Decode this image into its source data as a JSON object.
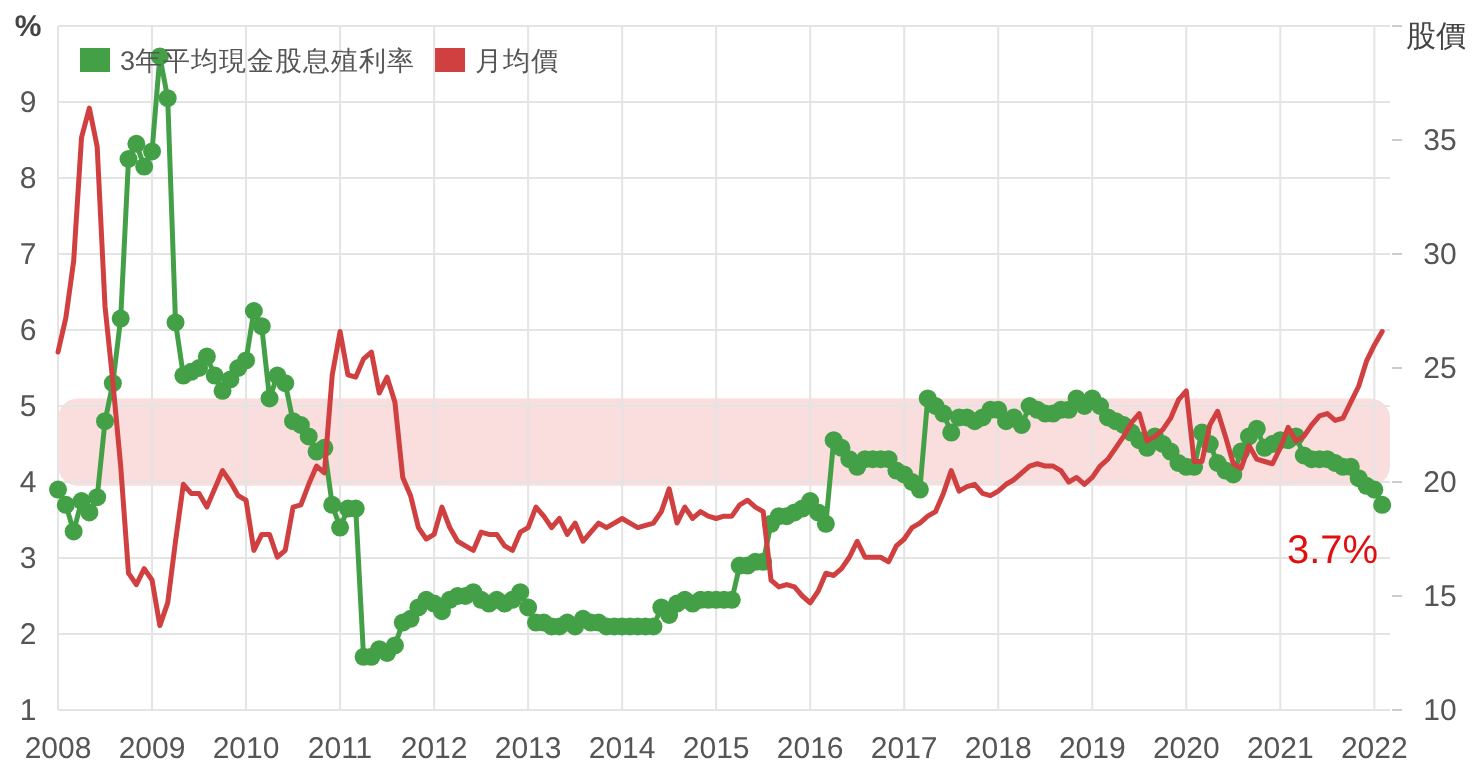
{
  "chart_data": {
    "type": "line",
    "ylabel": "%",
    "y2label": "股價",
    "legend": "top left",
    "grid": true,
    "xlim": [
      "2008-01",
      "2022-03"
    ],
    "xticks": [
      "2008",
      "2009",
      "2010",
      "2011",
      "2012",
      "2013",
      "2014",
      "2015",
      "2016",
      "2017",
      "2018",
      "2019",
      "2020",
      "2021",
      "2022"
    ],
    "ylim": [
      1,
      10
    ],
    "yticks": [
      1,
      2,
      3,
      4,
      5,
      6,
      7,
      8,
      9,
      {
        "value": 10,
        "label": null
      }
    ],
    "y2lim": [
      10,
      40
    ],
    "y2ticks": [
      10,
      15,
      20,
      25,
      30,
      35,
      {
        "value": 40,
        "label": null
      }
    ],
    "series": [
      {
        "name": "3年平均現金股息殖利率",
        "color": "#43a047",
        "marker": "circle",
        "axis": "y",
        "values": [
          3.9,
          3.7,
          3.35,
          3.75,
          3.6,
          3.8,
          4.8,
          5.3,
          6.15,
          8.25,
          8.45,
          8.15,
          8.35,
          9.6,
          9.05,
          6.1,
          5.4,
          5.45,
          5.5,
          5.65,
          5.4,
          5.2,
          5.35,
          5.5,
          5.6,
          6.25,
          6.05,
          5.1,
          5.4,
          5.3,
          4.8,
          4.75,
          4.6,
          4.4,
          4.45,
          3.7,
          3.4,
          3.65,
          3.65,
          1.7,
          1.7,
          1.8,
          1.75,
          1.85,
          2.15,
          2.2,
          2.35,
          2.45,
          2.4,
          2.3,
          2.45,
          2.5,
          2.5,
          2.55,
          2.45,
          2.4,
          2.45,
          2.4,
          2.45,
          2.55,
          2.35,
          2.15,
          2.15,
          2.1,
          2.1,
          2.15,
          2.1,
          2.2,
          2.15,
          2.15,
          2.1,
          2.1,
          2.1,
          2.1,
          2.1,
          2.1,
          2.1,
          2.35,
          2.25,
          2.4,
          2.45,
          2.4,
          2.45,
          2.45,
          2.45,
          2.45,
          2.45,
          2.9,
          2.9,
          2.95,
          2.95,
          3.45,
          3.55,
          3.55,
          3.6,
          3.65,
          3.75,
          3.6,
          3.45,
          4.55,
          4.45,
          4.3,
          4.2,
          4.3,
          4.3,
          4.3,
          4.3,
          4.15,
          4.1,
          4.0,
          3.9,
          5.1,
          5.0,
          4.9,
          4.65,
          4.85,
          4.85,
          4.8,
          4.85,
          4.95,
          4.95,
          4.8,
          4.85,
          4.75,
          5.0,
          4.95,
          4.9,
          4.9,
          4.95,
          4.95,
          5.1,
          5.0,
          5.1,
          5.0,
          4.85,
          4.8,
          4.75,
          4.65,
          4.55,
          4.45,
          4.6,
          4.5,
          4.4,
          4.25,
          4.2,
          4.2,
          4.65,
          4.5,
          4.25,
          4.15,
          4.1,
          4.4,
          4.6,
          4.7,
          4.45,
          4.5,
          4.55,
          4.55,
          4.6,
          4.35,
          4.3,
          4.3,
          4.3,
          4.25,
          4.2,
          4.2,
          4.05,
          3.95,
          3.9,
          3.7
        ]
      },
      {
        "name": "月均價",
        "color": "#d04040",
        "marker": "none",
        "axis": "y2",
        "values": [
          25.7,
          27.2,
          29.7,
          35.1,
          36.4,
          34.7,
          27.7,
          24.4,
          20.7,
          16.0,
          15.5,
          16.2,
          15.7,
          13.7,
          14.7,
          17.4,
          19.9,
          19.5,
          19.5,
          18.9,
          19.7,
          20.5,
          20.0,
          19.4,
          19.2,
          17.0,
          17.7,
          17.7,
          16.7,
          17.0,
          18.9,
          19.0,
          19.9,
          20.7,
          20.4,
          24.7,
          26.6,
          24.7,
          24.6,
          25.4,
          25.7,
          23.9,
          24.6,
          23.5,
          20.2,
          19.4,
          18.0,
          17.5,
          17.7,
          18.9,
          18.0,
          17.4,
          17.2,
          17.0,
          17.8,
          17.7,
          17.7,
          17.2,
          17.0,
          17.8,
          18.0,
          18.9,
          18.5,
          18.0,
          18.4,
          17.7,
          18.2,
          17.4,
          17.8,
          18.2,
          18.0,
          18.2,
          18.4,
          18.2,
          18.0,
          18.1,
          18.2,
          18.7,
          19.7,
          18.2,
          18.9,
          18.4,
          18.7,
          18.5,
          18.4,
          18.5,
          18.5,
          19.0,
          19.2,
          18.9,
          18.7,
          15.7,
          15.4,
          15.5,
          15.4,
          15.0,
          14.7,
          15.2,
          16.0,
          15.9,
          16.2,
          16.7,
          17.4,
          16.7,
          16.7,
          16.7,
          16.5,
          17.2,
          17.5,
          18.0,
          18.2,
          18.5,
          18.7,
          19.5,
          20.5,
          19.6,
          19.8,
          19.9,
          19.5,
          19.4,
          19.6,
          19.9,
          20.1,
          20.4,
          20.7,
          20.8,
          20.7,
          20.7,
          20.5,
          20.0,
          20.2,
          19.9,
          20.2,
          20.7,
          21.0,
          21.5,
          22.0,
          22.6,
          23.0,
          21.8,
          22.0,
          22.3,
          22.8,
          23.6,
          24.0,
          20.9,
          20.9,
          22.5,
          23.1,
          22.0,
          20.8,
          20.6,
          21.6,
          21.0,
          20.9,
          20.8,
          21.5,
          22.4,
          21.8,
          22.0,
          22.5,
          22.9,
          23.0,
          22.7,
          22.8,
          23.5,
          24.2,
          25.3,
          26.0,
          26.6
        ]
      }
    ],
    "x": [
      "2008-01",
      "2008-02",
      "2008-03",
      "2008-04",
      "2008-05",
      "2008-06",
      "2008-07",
      "2008-08",
      "2008-09",
      "2008-10",
      "2008-11",
      "2008-12",
      "2009-01",
      "2009-02",
      "2009-03",
      "2009-04",
      "2009-05",
      "2009-06",
      "2009-07",
      "2009-08",
      "2009-09",
      "2009-10",
      "2009-11",
      "2009-12",
      "2010-01",
      "2010-02",
      "2010-03",
      "2010-04",
      "2010-05",
      "2010-06",
      "2010-07",
      "2010-08",
      "2010-09",
      "2010-10",
      "2010-11",
      "2010-12",
      "2011-01",
      "2011-02",
      "2011-03",
      "2011-04",
      "2011-05",
      "2011-06",
      "2011-07",
      "2011-08",
      "2011-09",
      "2011-10",
      "2011-11",
      "2011-12",
      "2012-01",
      "2012-02",
      "2012-03",
      "2012-04",
      "2012-05",
      "2012-06",
      "2012-07",
      "2012-08",
      "2012-09",
      "2012-10",
      "2012-11",
      "2012-12",
      "2013-01",
      "2013-02",
      "2013-03",
      "2013-04",
      "2013-05",
      "2013-06",
      "2013-07",
      "2013-08",
      "2013-09",
      "2013-10",
      "2013-11",
      "2013-12",
      "2014-01",
      "2014-02",
      "2014-03",
      "2014-04",
      "2014-05",
      "2014-06",
      "2014-07",
      "2014-08",
      "2014-09",
      "2014-10",
      "2014-11",
      "2014-12",
      "2015-01",
      "2015-02",
      "2015-03",
      "2015-04",
      "2015-05",
      "2015-06",
      "2015-07",
      "2015-08",
      "2015-09",
      "2015-10",
      "2015-11",
      "2015-12",
      "2016-01",
      "2016-02",
      "2016-03",
      "2016-04",
      "2016-05",
      "2016-06",
      "2016-07",
      "2016-08",
      "2016-09",
      "2016-10",
      "2016-11",
      "2016-12",
      "2017-01",
      "2017-02",
      "2017-03",
      "2017-04",
      "2017-05",
      "2017-06",
      "2017-07",
      "2017-08",
      "2017-09",
      "2017-10",
      "2017-11",
      "2017-12",
      "2018-01",
      "2018-02",
      "2018-03",
      "2018-04",
      "2018-05",
      "2018-06",
      "2018-07",
      "2018-08",
      "2018-09",
      "2018-10",
      "2018-11",
      "2018-12",
      "2019-01",
      "2019-02",
      "2019-03",
      "2019-04",
      "2019-05",
      "2019-06",
      "2019-07",
      "2019-08",
      "2019-09",
      "2019-10",
      "2019-11",
      "2019-12",
      "2020-01",
      "2020-02",
      "2020-03",
      "2020-04",
      "2020-05",
      "2020-06",
      "2020-07",
      "2020-08",
      "2020-09",
      "2020-10",
      "2020-11",
      "2020-12",
      "2021-01",
      "2021-02",
      "2021-03",
      "2021-04",
      "2021-05",
      "2021-06",
      "2021-07",
      "2021-08",
      "2021-09",
      "2021-10",
      "2021-11",
      "2021-12",
      "2022-01",
      "2022-02"
    ],
    "bands": [
      {
        "axis": "y",
        "from": 3.95,
        "to": 5.1,
        "color": "#f6c6c6"
      }
    ],
    "annotations": [
      {
        "text": "3.7%",
        "x": "2022-02",
        "y": 3.7
      }
    ]
  }
}
